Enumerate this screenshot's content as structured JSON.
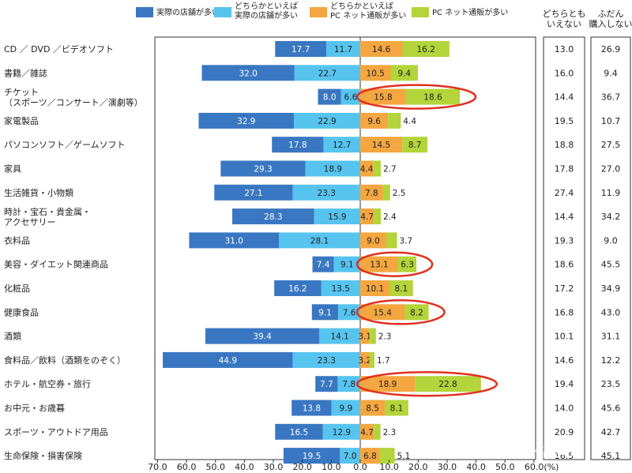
{
  "chart_data": {
    "type": "bar",
    "orientation": "horizontal-diverging",
    "xlim": [
      -70,
      60
    ],
    "xticks": [
      "70.0",
      "60.0",
      "50.0",
      "40.0",
      "30.0",
      "20.0",
      "10.0",
      "0.0",
      "10.0",
      "20.0",
      "30.0",
      "40.0",
      "50.0",
      "60.0(%)"
    ],
    "legend": [
      {
        "label": "実際の店舗が多い",
        "color": "#3a77c2"
      },
      {
        "label": "どちらかといえば\n実際の店舗が多い",
        "color": "#56c4ef"
      },
      {
        "label": "どちらかといえば\nPC ネット通販が多い",
        "color": "#f4a640"
      },
      {
        "label": "PC ネット通販が多い",
        "color": "#b3d43a"
      }
    ],
    "right_headers": [
      "どちらとも\nいえない",
      "ふだん\n購入しない"
    ],
    "categories": [
      "CD ／ DVD ／ビデオソフト",
      "書籍／雑誌",
      "チケット\n（スポーツ／コンサート／演劇等）",
      "家電製品",
      "パソコンソフト／ゲームソフト",
      "家具",
      "生活雑貨・小物類",
      "時計・宝石・貴金属・\nアクセサリー",
      "衣料品",
      "美容・ダイエット関連商品",
      "化粧品",
      "健康食品",
      "酒類",
      "食料品／飲料（酒類をのぞく）",
      "ホテル・航空券・旅行",
      "お中元・お歳暮",
      "スポーツ・アウトドア用品",
      "生命保険・損害保険"
    ],
    "series": [
      {
        "name": "実際の店舗が多い",
        "values": [
          17.7,
          32.0,
          8.0,
          32.9,
          17.8,
          29.3,
          27.1,
          28.3,
          31.0,
          7.4,
          16.2,
          9.1,
          39.4,
          44.9,
          7.7,
          13.8,
          16.5,
          19.5
        ]
      },
      {
        "name": "どちらかといえば実際の店舗が多い",
        "values": [
          11.7,
          22.7,
          6.6,
          22.9,
          12.7,
          18.9,
          23.3,
          15.9,
          28.1,
          9.1,
          13.5,
          7.6,
          14.1,
          23.3,
          7.8,
          9.9,
          12.9,
          7.0
        ]
      },
      {
        "name": "どちらかといえばPC ネット通販が多い",
        "values": [
          14.6,
          10.5,
          15.8,
          9.6,
          14.5,
          4.4,
          7.8,
          4.7,
          9.0,
          13.1,
          10.1,
          15.4,
          3.1,
          3.2,
          18.9,
          8.5,
          4.7,
          6.8
        ]
      },
      {
        "name": "PC ネット通販が多い",
        "values": [
          16.2,
          9.4,
          18.6,
          4.4,
          8.7,
          2.7,
          2.5,
          2.4,
          3.7,
          6.3,
          8.1,
          8.2,
          2.3,
          1.7,
          22.8,
          8.1,
          2.3,
          5.1
        ]
      }
    ],
    "neither": [
      13.0,
      16.0,
      14.4,
      19.5,
      18.8,
      17.8,
      27.4,
      14.4,
      19.3,
      18.6,
      17.2,
      16.8,
      10.1,
      14.6,
      19.4,
      14.0,
      20.9,
      16.5
    ],
    "do_not_buy": [
      26.9,
      9.4,
      36.7,
      10.7,
      27.5,
      27.0,
      11.9,
      34.2,
      9.0,
      45.5,
      34.9,
      43.0,
      31.1,
      12.2,
      23.5,
      45.6,
      42.7,
      45.1
    ],
    "highlighted_rows": [
      2,
      9,
      11,
      14
    ],
    "highlight_color": "#e0301e",
    "watermark": "知乎 @东京第一站·梨歌"
  }
}
